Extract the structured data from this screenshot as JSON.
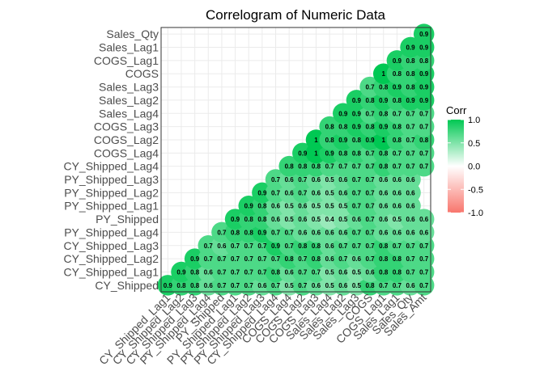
{
  "chart_data": {
    "type": "heatmap",
    "subtype": "correlogram (lower triangle, circles)",
    "title": "Correlogram of Numeric Data",
    "variables": [
      "CY_Shipped",
      "CY_Shipped_Lag1",
      "CY_Shipped_Lag2",
      "CY_Shipped_Lag3",
      "PY_Shipped_Lag4",
      "PY_Shipped",
      "PY_Shipped_Lag1",
      "PY_Shipped_Lag2",
      "PY_Shipped_Lag3",
      "CY_Shipped_Lag4",
      "COGS_Lag4",
      "COGS_Lag2",
      "COGS_Lag3",
      "Sales_Lag4",
      "Sales_Lag2",
      "Sales_Lag3",
      "COGS",
      "COGS_Lag1",
      "Sales_Lag1",
      "Sales_Qty",
      "Sales_Amt"
    ],
    "x_labels": [
      "CY_Shipped_Lag1",
      "CY_Shipped_Lag2",
      "CY_Shipped_Lag3",
      "PY_Shipped_Lag4",
      "PY_Shipped",
      "PY_Shipped_Lag1",
      "PY_Shipped_Lag2",
      "PY_Shipped_Lag3",
      "CY_Shipped_Lag4",
      "COGS_Lag4",
      "COGS_Lag2",
      "COGS_Lag3",
      "Sales_Lag4",
      "Sales_Lag2",
      "Sales_Lag3",
      "COGS",
      "COGS_Lag1",
      "Sales_Lag1",
      "Sales_Qty",
      "Sales_Amt"
    ],
    "y_labels": [
      "CY_Shipped",
      "CY_Shipped_Lag1",
      "CY_Shipped_Lag2",
      "CY_Shipped_Lag3",
      "PY_Shipped_Lag4",
      "PY_Shipped",
      "PY_Shipped_Lag1",
      "PY_Shipped_Lag2",
      "PY_Shipped_Lag3",
      "CY_Shipped_Lag4",
      "COGS_Lag4",
      "COGS_Lag2",
      "COGS_Lag3",
      "Sales_Lag4",
      "Sales_Lag2",
      "Sales_Lag3",
      "COGS",
      "COGS_Lag1",
      "Sales_Lag1",
      "Sales_Qty"
    ],
    "rows": [
      {
        "y": "CY_Shipped",
        "values": [
          0.9,
          0.8,
          0.8,
          0.6,
          0.7,
          0.7,
          0.7,
          0.6,
          0.7,
          0.5,
          0.7,
          0.6,
          0.5,
          0.6,
          0.5,
          0.8,
          0.7,
          0.7,
          0.6,
          0.7
        ]
      },
      {
        "y": "CY_Shipped_Lag1",
        "values": [
          0.9,
          0.8,
          0.6,
          0.7,
          0.7,
          0.7,
          0.7,
          0.8,
          0.6,
          0.7,
          0.7,
          0.5,
          0.6,
          0.5,
          0.6,
          0.8,
          0.8,
          0.7,
          0.7
        ]
      },
      {
        "y": "CY_Shipped_Lag2",
        "values": [
          0.9,
          0.7,
          0.7,
          0.7,
          0.7,
          0.7,
          0.7,
          0.8,
          0.7,
          0.8,
          0.6,
          0.7,
          0.6,
          0.7,
          0.8,
          0.8,
          0.7,
          0.7
        ]
      },
      {
        "y": "CY_Shipped_Lag3",
        "values": [
          0.7,
          0.6,
          0.7,
          0.7,
          0.7,
          0.9,
          0.7,
          0.8,
          0.8,
          0.6,
          0.7,
          0.7,
          0.7,
          0.8,
          0.7,
          0.7,
          0.7
        ]
      },
      {
        "y": "PY_Shipped_Lag4",
        "values": [
          0.7,
          0.8,
          0.8,
          0.9,
          0.7,
          0.7,
          0.6,
          0.6,
          0.6,
          0.6,
          0.7,
          0.7,
          0.6,
          0.6,
          0.6,
          0.6
        ]
      },
      {
        "y": "PY_Shipped",
        "values": [
          0.9,
          0.8,
          0.8,
          0.6,
          0.5,
          0.6,
          0.5,
          0.4,
          0.5,
          0.6,
          0.7,
          0.6,
          0.5,
          0.6,
          0.6
        ]
      },
      {
        "y": "PY_Shipped_Lag1",
        "values": [
          0.9,
          0.8,
          0.6,
          0.5,
          0.6,
          0.5,
          0.5,
          0.5,
          0.7,
          0.7,
          0.6,
          0.6,
          0.6
        ]
      },
      {
        "y": "PY_Shipped_Lag2",
        "values": [
          0.9,
          0.7,
          0.6,
          0.7,
          0.6,
          0.5,
          0.6,
          0.7,
          0.7,
          0.6,
          0.6,
          0.6
        ]
      },
      {
        "y": "PY_Shipped_Lag3",
        "values": [
          0.7,
          0.6,
          0.7,
          0.6,
          0.5,
          0.6,
          0.7,
          0.7,
          0.6,
          0.6,
          0.6
        ]
      },
      {
        "y": "CY_Shipped_Lag4",
        "values": [
          0.8,
          0.8,
          0.8,
          0.7,
          0.7,
          0.7,
          0.7,
          0.8,
          0.7,
          0.7,
          0.7
        ]
      },
      {
        "y": "COGS_Lag4",
        "values": [
          0.9,
          1,
          0.9,
          0.8,
          0.8,
          0.7,
          0.8,
          0.7,
          0.7,
          0.7
        ]
      },
      {
        "y": "COGS_Lag2",
        "values": [
          1,
          0.8,
          0.9,
          0.8,
          0.9,
          1,
          0.8,
          0.7,
          0.8
        ]
      },
      {
        "y": "COGS_Lag3",
        "values": [
          0.8,
          0.8,
          0.9,
          0.8,
          0.9,
          0.8,
          0.7,
          0.7
        ]
      },
      {
        "y": "Sales_Lag4",
        "values": [
          0.9,
          0.9,
          0.7,
          0.8,
          0.7,
          0.7,
          0.7
        ]
      },
      {
        "y": "Sales_Lag2",
        "values": [
          0.9,
          0.8,
          0.9,
          0.8,
          0.9,
          0.9
        ]
      },
      {
        "y": "Sales_Lag3",
        "values": [
          0.7,
          0.8,
          0.9,
          0.8,
          0.9
        ]
      },
      {
        "y": "COGS",
        "values": [
          1,
          0.8,
          0.8,
          0.9
        ]
      },
      {
        "y": "COGS_Lag1",
        "values": [
          0.9,
          0.8,
          0.8
        ]
      },
      {
        "y": "Sales_Lag1",
        "values": [
          0.9,
          0.9
        ]
      },
      {
        "y": "Sales_Qty",
        "values": [
          0.9
        ]
      }
    ],
    "legend": {
      "title": "Corr",
      "ticks": [
        "1.0",
        "0.5",
        "0.0",
        "-0.5",
        "-1.0"
      ],
      "range": [
        -1,
        1
      ],
      "colors": {
        "low": "#f8766d",
        "mid": "#ffffff",
        "high": "#00c853"
      },
      "placement": "right"
    },
    "grid": true
  }
}
